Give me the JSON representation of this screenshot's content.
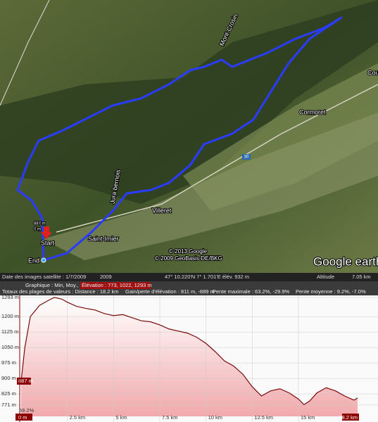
{
  "map": {
    "labels": [
      "Mont-Crosin",
      "Villeret",
      "Saint-Imier",
      "Cormoret",
      "Cou",
      "Jura bernois",
      "887 m",
      "0 m"
    ],
    "start": "Start",
    "end": "End",
    "road": "30",
    "copyright": [
      "© 2013 Google",
      "© 2009 GeoBasis-DE/BKG"
    ],
    "logo": "Google earth",
    "status": {
      "date": "Date des images satellite : 1/7/2009",
      "year": "2009",
      "coords": "47° 10.220'N   7° 1.701'E  élév.  932 m",
      "altitude": "Altitude",
      "altitude_value": "7.05 km"
    }
  },
  "profile": {
    "graph": "Graphique : Min, Moy., Max",
    "elevation": "Élévation : 773, 1022, 1293 m",
    "totals": "Totaux des plages de valeurs : Distance : 18.2 km",
    "gain": "Gain/perte d'élévation : 811 m, -889 m",
    "max_slope": "Pente maximale : 63.2%, -29.9%",
    "avg_slope": "Pente moyenne : 9.2%, -7.0%",
    "cursor_elevation": {
      "value": 887,
      "label": "887 m"
    },
    "cursor_slope": "59.2%",
    "xlim": [
      0,
      18.2
    ],
    "ylim": [
      716,
      1303
    ],
    "yticks": [
      {
        "value": 1293,
        "label": "1293 m"
      },
      {
        "value": 1200,
        "label": "1200 m"
      },
      {
        "value": 1125,
        "label": "1125 m"
      },
      {
        "value": 1050,
        "label": "1050 m"
      },
      {
        "value": 975,
        "label": "975 m"
      },
      {
        "value": 900,
        "label": "900 m"
      },
      {
        "value": 825,
        "label": "825 m"
      },
      {
        "value": 771,
        "label": "771 m"
      }
    ],
    "xticks": [
      {
        "value": 0,
        "label": "0 m"
      },
      {
        "value": 2.5,
        "label": "2.5 km"
      },
      {
        "value": 5,
        "label": "5 km"
      },
      {
        "value": 7.5,
        "label": "7.5 km"
      },
      {
        "value": 10,
        "label": "10 km"
      },
      {
        "value": 12.5,
        "label": "12.5 km"
      },
      {
        "value": 15,
        "label": "15 km"
      },
      {
        "value": 18.2,
        "label": "18.2 km"
      }
    ],
    "x": [
      0,
      0.2,
      0.5,
      1,
      1.5,
      1.8,
      2.2,
      2.5,
      3,
      3.5,
      4,
      4.5,
      5,
      5.5,
      6,
      6.5,
      7,
      7.5,
      8,
      8.5,
      9,
      9.5,
      10,
      10.5,
      11,
      11.5,
      12,
      12.5,
      13,
      13.5,
      14,
      14.5,
      15,
      15.3,
      15.6,
      16,
      16.5,
      17,
      17.5,
      18,
      18.2
    ],
    "y": [
      887,
      1050,
      1200,
      1255,
      1280,
      1293,
      1285,
      1270,
      1250,
      1240,
      1232,
      1215,
      1205,
      1210,
      1195,
      1180,
      1175,
      1160,
      1140,
      1130,
      1120,
      1100,
      1070,
      1030,
      985,
      960,
      920,
      860,
      815,
      840,
      850,
      830,
      800,
      773,
      790,
      830,
      855,
      840,
      815,
      795,
      805
    ]
  }
}
